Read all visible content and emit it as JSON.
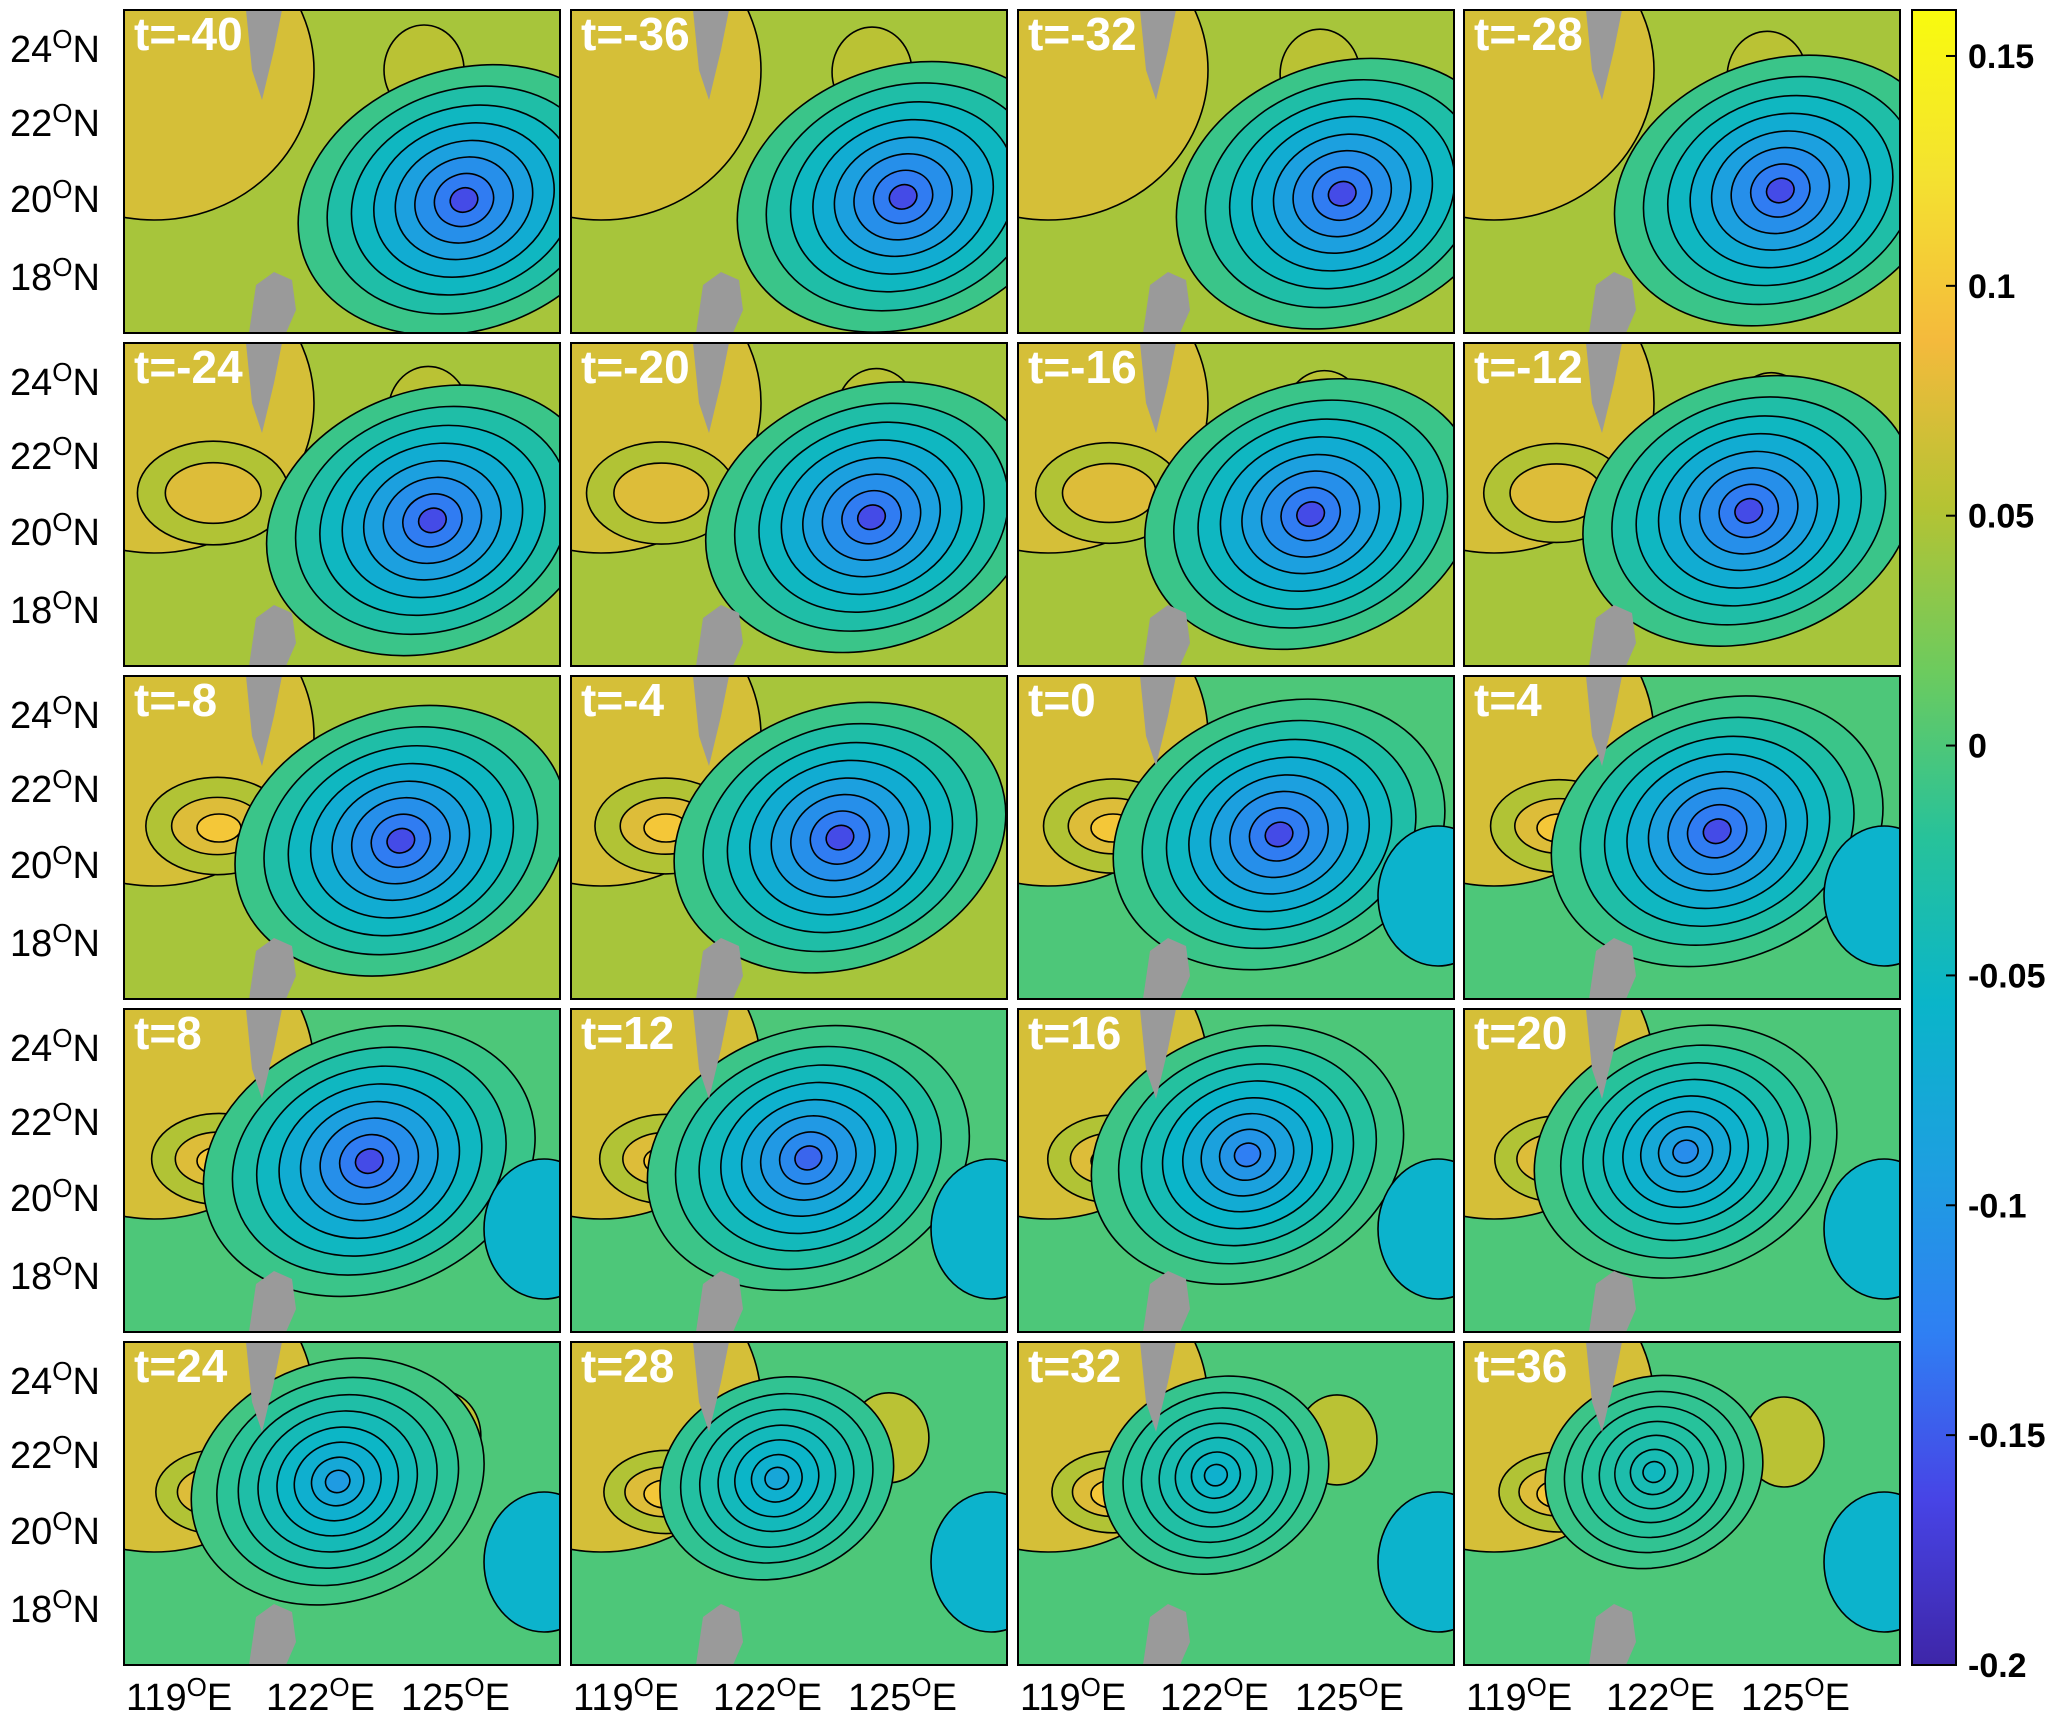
{
  "figure": {
    "panel_labels": [
      "t=-40",
      "t=-36",
      "t=-32",
      "t=-28",
      "t=-24",
      "t=-20",
      "t=-16",
      "t=-12",
      "t=-8",
      "t=-4",
      "t=0",
      "t=4",
      "t=8",
      "t=12",
      "t=16",
      "t=20",
      "t=24",
      "t=28",
      "t=32",
      "t=36"
    ],
    "lat_ticks": [
      {
        "deg": "24",
        "sup": "O",
        "hemi": "N"
      },
      {
        "deg": "22",
        "sup": "O",
        "hemi": "N"
      },
      {
        "deg": "20",
        "sup": "O",
        "hemi": "N"
      },
      {
        "deg": "18",
        "sup": "O",
        "hemi": "N"
      }
    ],
    "lon_ticks": [
      {
        "deg": "119",
        "sup": "O",
        "hemi": "E"
      },
      {
        "deg": "122",
        "sup": "O",
        "hemi": "E"
      },
      {
        "deg": "125",
        "sup": "O",
        "hemi": "E"
      }
    ],
    "colorbar": {
      "ticks": [
        "0.15",
        "0.1",
        "0.05",
        "0",
        "-0.05",
        "-0.1",
        "-0.15",
        "-0.2"
      ],
      "range": [
        -0.2,
        0.16
      ],
      "colors": [
        "#3e26a8",
        "#4744e6",
        "#2f7ff3",
        "#1d9fe0",
        "#0ab5c9",
        "#27c29a",
        "#6ccb5e",
        "#b5c333",
        "#f4ba3c",
        "#f4e230",
        "#f9fb0e"
      ]
    },
    "land_color": "#9a9a9a",
    "map_extent": {
      "lon": [
        117,
        128.5
      ],
      "lat": [
        17.3,
        24.8
      ]
    }
  }
}
